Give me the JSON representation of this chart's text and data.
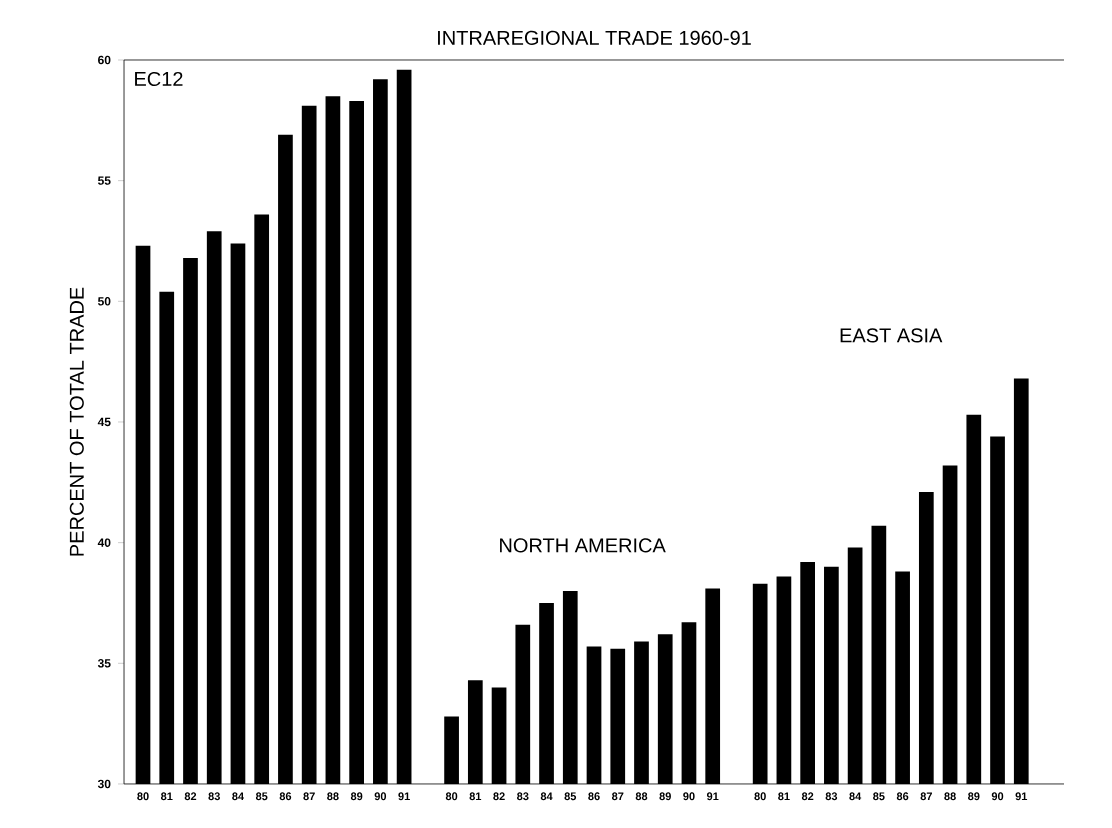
{
  "chart_data": {
    "type": "bar",
    "title": "INTRAREGIONAL TRADE 1960-91",
    "ylabel": "PERCENT OF TOTAL TRADE",
    "categories": [
      "80",
      "81",
      "82",
      "83",
      "84",
      "85",
      "86",
      "87",
      "88",
      "89",
      "90",
      "91",
      null,
      "80",
      "81",
      "82",
      "83",
      "84",
      "85",
      "86",
      "87",
      "88",
      "89",
      "90",
      "91",
      null,
      "80",
      "81",
      "82",
      "83",
      "84",
      "85",
      "86",
      "87",
      "88",
      "89",
      "90",
      "91"
    ],
    "values": [
      52.3,
      50.4,
      51.8,
      52.9,
      52.4,
      53.6,
      56.9,
      58.1,
      58.5,
      58.3,
      59.2,
      59.6,
      null,
      32.8,
      34.3,
      34.0,
      36.6,
      37.5,
      38.0,
      35.7,
      35.6,
      35.9,
      36.2,
      36.7,
      38.1,
      null,
      38.3,
      38.6,
      39.2,
      39.0,
      39.8,
      40.7,
      38.8,
      42.1,
      43.2,
      45.3,
      44.4,
      46.8
    ],
    "color": "#000000",
    "ylim": [
      30,
      60
    ],
    "yticks": [
      30,
      35,
      40,
      45,
      50,
      55,
      60
    ],
    "annotations": [
      "EC12",
      "NORTH AMERICA",
      "EAST ASIA"
    ]
  }
}
